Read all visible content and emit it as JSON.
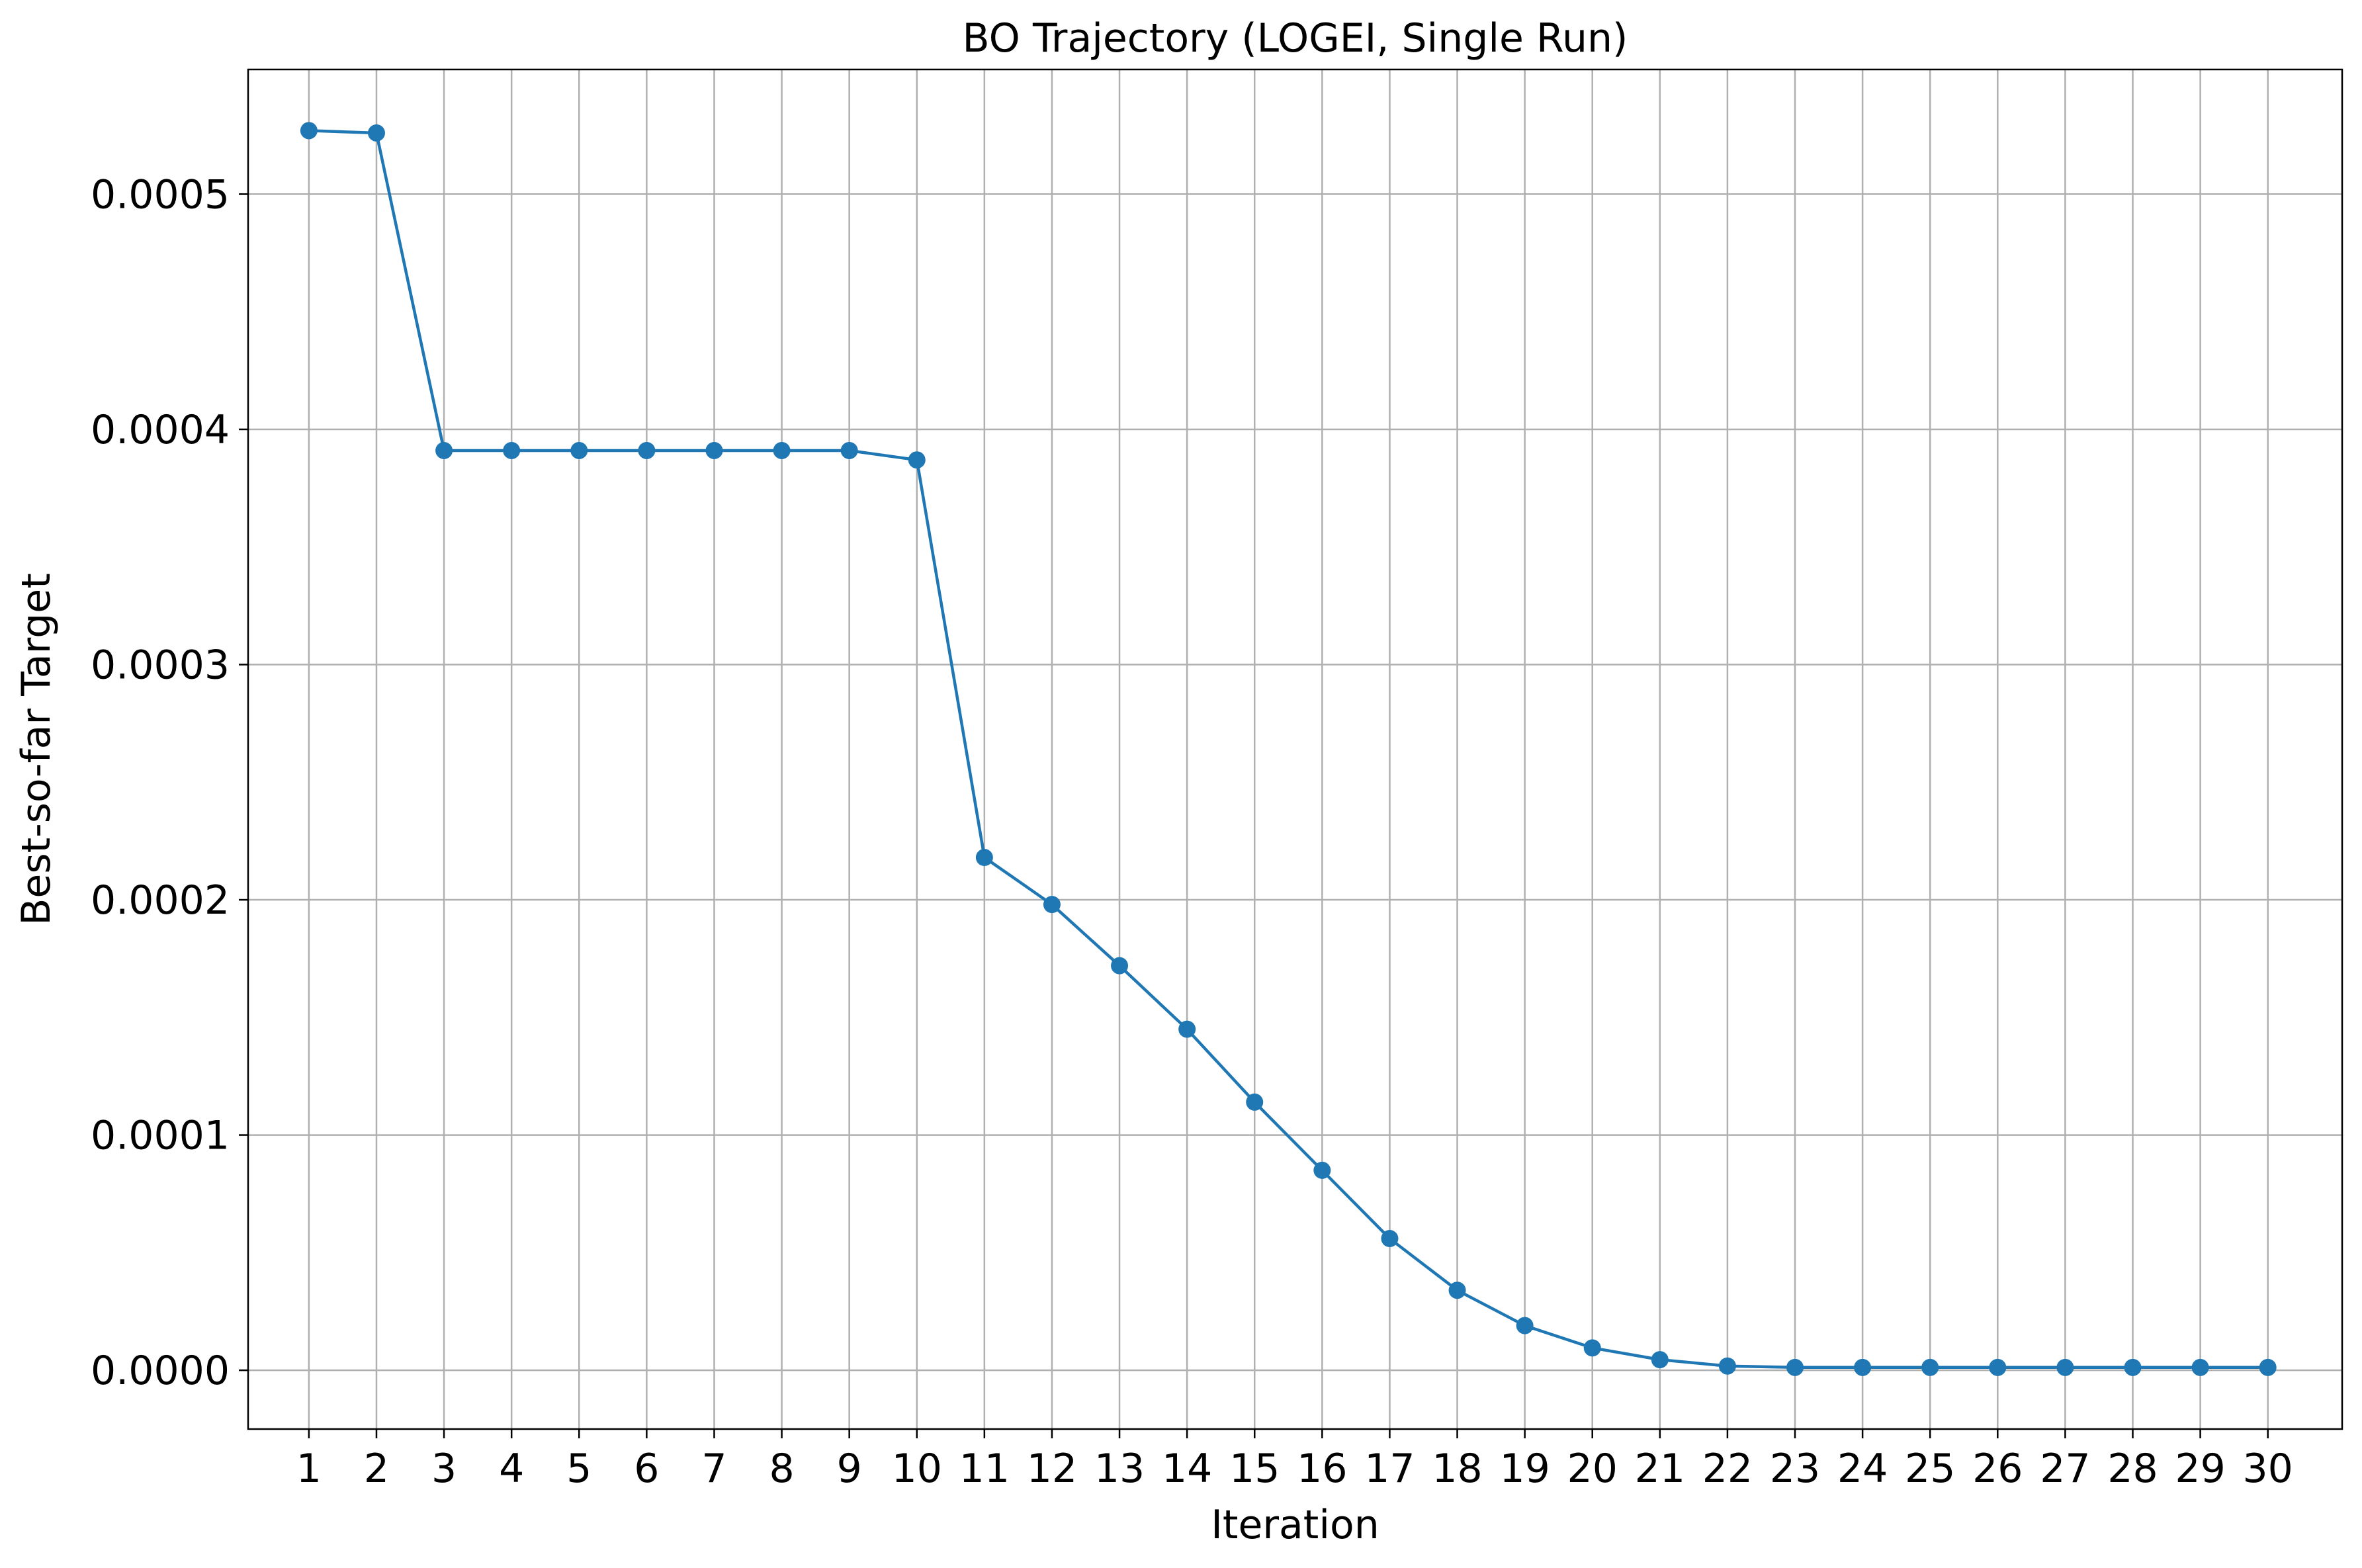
{
  "chart_data": {
    "type": "line",
    "title": "BO Trajectory (LOGEI, Single Run)",
    "xlabel": "Iteration",
    "ylabel": "Best-so-far Target",
    "xlim": [
      0.1,
      31.1
    ],
    "ylim": [
      -2.5e-05,
      0.000553
    ],
    "grid": true,
    "x": [
      1,
      2,
      3,
      4,
      5,
      6,
      7,
      8,
      9,
      10,
      11,
      12,
      13,
      14,
      15,
      16,
      17,
      18,
      19,
      20,
      21,
      22,
      23,
      24,
      25,
      26,
      27,
      28,
      29,
      30
    ],
    "x_tick_labels": [
      "1",
      "2",
      "3",
      "4",
      "5",
      "6",
      "7",
      "8",
      "9",
      "10",
      "11",
      "12",
      "13",
      "14",
      "15",
      "16",
      "17",
      "18",
      "19",
      "20",
      "21",
      "22",
      "23",
      "24",
      "25",
      "26",
      "27",
      "28",
      "29",
      "30"
    ],
    "y_ticks": [
      0.0,
      0.0001,
      0.0002,
      0.0003,
      0.0004,
      0.0005
    ],
    "y_tick_labels": [
      "0.0000",
      "0.0001",
      "0.0002",
      "0.0003",
      "0.0004",
      "0.0005"
    ],
    "series": [
      {
        "color": "#1f77b4",
        "marker": "circle",
        "values": [
          0.000527,
          0.000526,
          0.000391,
          0.000391,
          0.000391,
          0.000391,
          0.000391,
          0.000391,
          0.000391,
          0.000387,
          0.000218,
          0.000198,
          0.000172,
          0.000145,
          0.000114,
          8.5e-05,
          5.6e-05,
          3.4e-05,
          1.9e-05,
          9.5e-06,
          4.5e-06,
          1.8e-06,
          1.2e-06,
          1.2e-06,
          1.2e-06,
          1.2e-06,
          1.2e-06,
          1.2e-06,
          1.2e-06,
          1.2e-06
        ]
      }
    ]
  }
}
